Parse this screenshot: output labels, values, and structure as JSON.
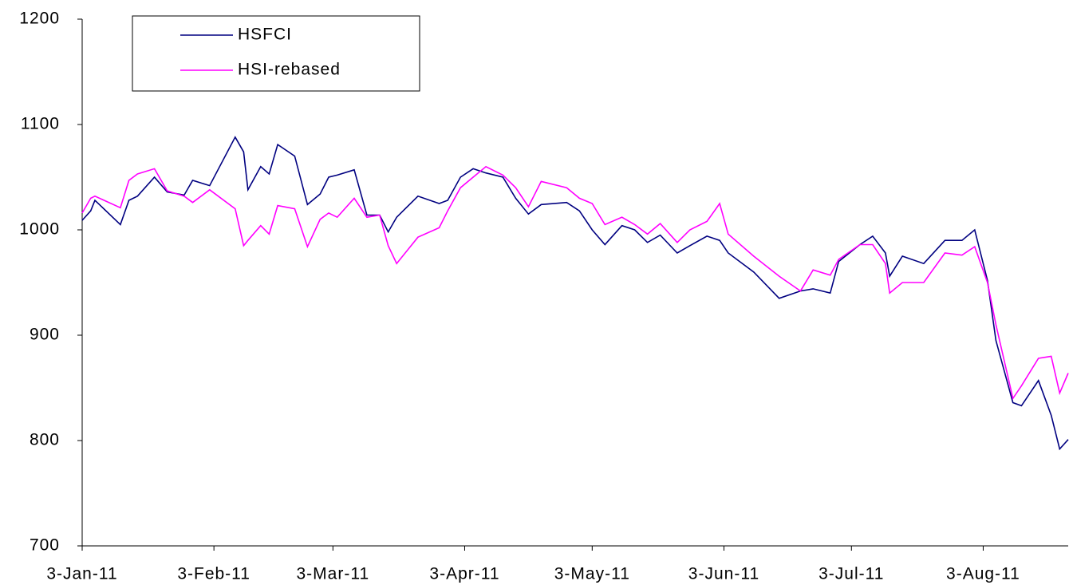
{
  "chart_data": {
    "type": "line",
    "x": [
      "2011-01-03",
      "2011-01-05",
      "2011-01-06",
      "2011-01-12",
      "2011-01-14",
      "2011-01-16",
      "2011-01-20",
      "2011-01-23",
      "2011-01-27",
      "2011-01-29",
      "2011-02-02",
      "2011-02-08",
      "2011-02-10",
      "2011-02-11",
      "2011-02-14",
      "2011-02-16",
      "2011-02-18",
      "2011-02-22",
      "2011-02-25",
      "2011-02-28",
      "2011-03-02",
      "2011-03-04",
      "2011-03-08",
      "2011-03-11",
      "2011-03-14",
      "2011-03-16",
      "2011-03-18",
      "2011-03-23",
      "2011-03-28",
      "2011-03-30",
      "2011-04-02",
      "2011-04-05",
      "2011-04-08",
      "2011-04-12",
      "2011-04-15",
      "2011-04-18",
      "2011-04-21",
      "2011-04-27",
      "2011-04-30",
      "2011-05-03",
      "2011-05-06",
      "2011-05-10",
      "2011-05-13",
      "2011-05-16",
      "2011-05-19",
      "2011-05-23",
      "2011-05-26",
      "2011-05-30",
      "2011-06-02",
      "2011-06-04",
      "2011-06-10",
      "2011-06-16",
      "2011-06-21",
      "2011-06-24",
      "2011-06-28",
      "2011-06-30",
      "2011-07-05",
      "2011-07-08",
      "2011-07-11",
      "2011-07-12",
      "2011-07-15",
      "2011-07-20",
      "2011-07-25",
      "2011-07-29",
      "2011-08-01",
      "2011-08-04",
      "2011-08-06",
      "2011-08-10",
      "2011-08-12",
      "2011-08-16",
      "2011-08-19",
      "2011-08-21",
      "2011-08-23"
    ],
    "series": [
      {
        "name": "HSFCI",
        "color": "#000080",
        "values": [
          1009,
          1018,
          1028,
          1005,
          1028,
          1032,
          1050,
          1036,
          1033,
          1047,
          1042,
          1088,
          1074,
          1038,
          1060,
          1053,
          1081,
          1070,
          1024,
          1034,
          1050,
          1052,
          1057,
          1014,
          1014,
          998,
          1012,
          1032,
          1025,
          1028,
          1050,
          1058,
          1054,
          1050,
          1030,
          1015,
          1024,
          1026,
          1018,
          1000,
          986,
          1004,
          1000,
          988,
          995,
          978,
          985,
          994,
          990,
          978,
          960,
          935,
          942,
          944,
          940,
          970,
          986,
          994,
          978,
          956,
          975,
          968,
          990,
          990,
          1000,
          952,
          895,
          836,
          833,
          857,
          824,
          792,
          801
        ]
      },
      {
        "name": "HSI-rebased",
        "color": "#ff00ff",
        "values": [
          1016,
          1030,
          1032,
          1021,
          1047,
          1053,
          1058,
          1037,
          1032,
          1026,
          1038,
          1020,
          985,
          990,
          1004,
          996,
          1023,
          1020,
          984,
          1010,
          1016,
          1012,
          1030,
          1012,
          1014,
          985,
          968,
          993,
          1002,
          1018,
          1040,
          1050,
          1060,
          1052,
          1040,
          1022,
          1046,
          1040,
          1030,
          1025,
          1005,
          1012,
          1005,
          996,
          1006,
          988,
          1000,
          1008,
          1025,
          996,
          975,
          956,
          942,
          962,
          957,
          972,
          986,
          986,
          968,
          940,
          950,
          950,
          978,
          976,
          984,
          950,
          910,
          840,
          852,
          878,
          880,
          845,
          864
        ]
      }
    ],
    "xlim": [
      "2011-01-03",
      "2011-08-23"
    ],
    "xticks": [
      {
        "value": "2011-01-03",
        "label": "3-Jan-11"
      },
      {
        "value": "2011-02-03",
        "label": "3-Feb-11"
      },
      {
        "value": "2011-03-03",
        "label": "3-Mar-11"
      },
      {
        "value": "2011-04-03",
        "label": "3-Apr-11"
      },
      {
        "value": "2011-05-03",
        "label": "3-May-11"
      },
      {
        "value": "2011-06-03",
        "label": "3-Jun-11"
      },
      {
        "value": "2011-07-03",
        "label": "3-Jul-11"
      },
      {
        "value": "2011-08-03",
        "label": "3-Aug-11"
      }
    ],
    "ylim": [
      700,
      1200
    ],
    "yticks": [
      700,
      800,
      900,
      1000,
      1100,
      1200
    ],
    "grid": false,
    "legend": "upper-left"
  }
}
